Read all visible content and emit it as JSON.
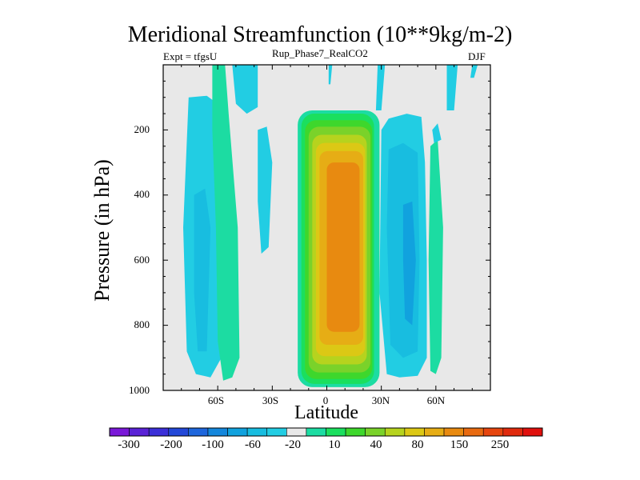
{
  "chart_data": {
    "type": "heatmap",
    "title": "Meridional Streamfunction (10**9kg/m-2)",
    "subtitle_left": "Expt = tfgsU",
    "subtitle_center": "Rup_Phase7_RealCO2",
    "subtitle_right": "DJF",
    "xlabel": "Latitude",
    "ylabel": "Pressure (in hPa)",
    "x_ticks": [
      "60S",
      "30S",
      "0",
      "30N",
      "60N"
    ],
    "y_ticks": [
      "200",
      "400",
      "600",
      "800",
      "1000"
    ],
    "x_tick_values": [
      -60,
      -30,
      0,
      30,
      60
    ],
    "y_tick_values": [
      200,
      400,
      600,
      800,
      1000
    ],
    "xlim": [
      -90,
      90
    ],
    "ylim": [
      1000,
      0
    ],
    "colorbar_labels": [
      "-300",
      "-200",
      "-100",
      "-60",
      "-20",
      "10",
      "40",
      "80",
      "150",
      "250"
    ],
    "colorbar_colors": [
      "#7a18d8",
      "#5a22d6",
      "#3b2fd8",
      "#2348d8",
      "#1e66dc",
      "#1487dc",
      "#11a2de",
      "#18bde0",
      "#22cde3",
      "#e8e8e8",
      "#1cdca2",
      "#1bdf5e",
      "#3ed72c",
      "#7ad22a",
      "#b6d31e",
      "#dcc815",
      "#e6ad15",
      "#e88a10",
      "#e86a10",
      "#e6450e",
      "#e02a0d",
      "#e0100d"
    ],
    "features": [
      {
        "type": "positive",
        "lat_range": [
          -18,
          28
        ],
        "p_range": [
          140,
          990
        ],
        "peak": "150-250",
        "center_lat": 5
      },
      {
        "type": "negative",
        "lat_range": [
          25,
          55
        ],
        "p_range": [
          150,
          960
        ],
        "peak": "-60",
        "center_lat": 45
      },
      {
        "type": "negative",
        "lat_range": [
          -78,
          -58
        ],
        "p_range": [
          100,
          950
        ],
        "peak": "-60",
        "center_lat": -68
      },
      {
        "type": "positive",
        "lat_range": [
          -63,
          -48
        ],
        "p_range": [
          0,
          970
        ],
        "peak": "10",
        "center_lat": -55
      },
      {
        "type": "positive",
        "lat_range": [
          56,
          64
        ],
        "p_range": [
          100,
          950
        ],
        "peak": "10",
        "center_lat": 60
      }
    ]
  }
}
